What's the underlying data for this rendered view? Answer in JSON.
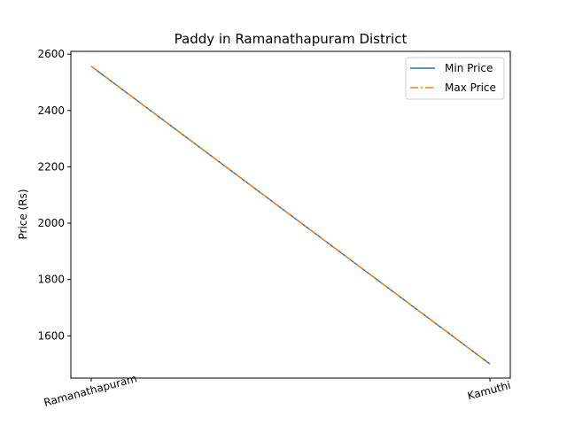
{
  "chart_data": {
    "type": "line",
    "title": "Paddy in Ramanathapuram District",
    "xlabel": "",
    "ylabel": "Price (Rs)",
    "categories": [
      "Ramanathapuram",
      "Kamuthi"
    ],
    "ylim": [
      1450,
      2610
    ],
    "yticks": [
      1600,
      1800,
      2000,
      2200,
      2400,
      2600
    ],
    "grid": false,
    "legend_position": "top-right",
    "series": [
      {
        "name": "Min Price",
        "values": [
          2557,
          1500
        ],
        "color": "#1f77b4",
        "linestyle": "solid"
      },
      {
        "name": "Max Price",
        "values": [
          2557,
          1500
        ],
        "color": "#ff7f0e",
        "linestyle": "dashdot"
      }
    ]
  }
}
